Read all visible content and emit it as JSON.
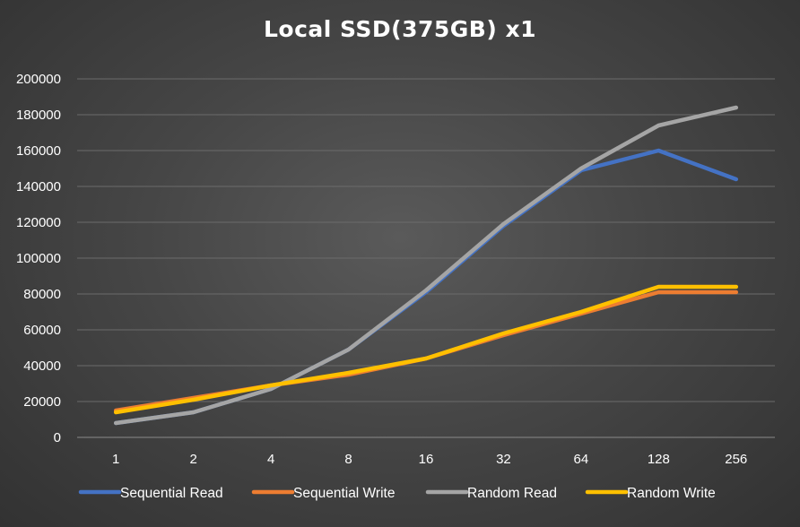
{
  "chart_data": {
    "type": "line",
    "title": "Local SSD(375GB) x1",
    "xlabel": "",
    "ylabel": "",
    "categories": [
      "1",
      "2",
      "4",
      "8",
      "16",
      "32",
      "64",
      "128",
      "256"
    ],
    "ylim": [
      0,
      200000
    ],
    "yticks": [
      "0",
      "20000",
      "40000",
      "60000",
      "80000",
      "100000",
      "120000",
      "140000",
      "160000",
      "180000",
      "200000"
    ],
    "grid": true,
    "legend_position": "bottom",
    "series": [
      {
        "name": "Sequential Read",
        "color": "#4472C4",
        "values": [
          8000,
          14000,
          27000,
          49000,
          81000,
          118000,
          149000,
          160000,
          144000
        ]
      },
      {
        "name": "Sequential Write",
        "color": "#ED7D31",
        "values": [
          15000,
          22000,
          29000,
          35000,
          44000,
          57000,
          69000,
          81000,
          81000
        ]
      },
      {
        "name": "Random Read",
        "color": "#A5A5A5",
        "values": [
          8000,
          14000,
          27000,
          49000,
          82000,
          119000,
          150000,
          174000,
          184000
        ]
      },
      {
        "name": "Random Write",
        "color": "#FFC000",
        "values": [
          14000,
          21000,
          29000,
          36000,
          44000,
          58000,
          70000,
          84000,
          84000
        ]
      }
    ]
  }
}
